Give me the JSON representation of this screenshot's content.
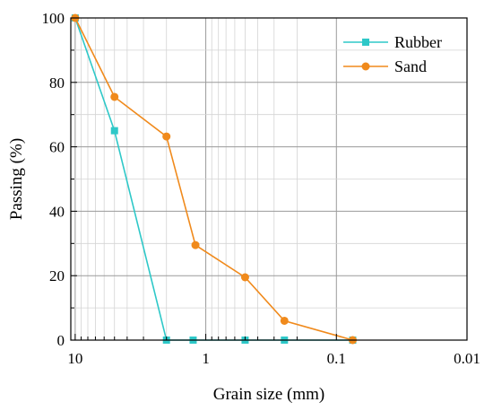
{
  "chart_data": {
    "type": "line",
    "xscale": "log",
    "xaxis_reversed": true,
    "xlim": [
      10.8,
      0.01
    ],
    "ylim": [
      0,
      100
    ],
    "xlabel": "Grain size (mm)",
    "ylabel": "Passing (%)",
    "grid": true,
    "legend_position": "top-right",
    "xticks": [
      {
        "value": 10,
        "label": "10"
      },
      {
        "value": 1,
        "label": "1"
      },
      {
        "value": 0.1,
        "label": "0.1"
      },
      {
        "value": 0.01,
        "label": "0.01"
      }
    ],
    "yticks": [
      {
        "value": 0,
        "label": "0"
      },
      {
        "value": 20,
        "label": "20"
      },
      {
        "value": 40,
        "label": "40"
      },
      {
        "value": 60,
        "label": "60"
      },
      {
        "value": 80,
        "label": "80"
      },
      {
        "value": 100,
        "label": "100"
      }
    ],
    "series": [
      {
        "name": "Rubber",
        "color": "#2ec8c8",
        "marker": "square",
        "points": [
          {
            "x": 10,
            "y": 100
          },
          {
            "x": 5,
            "y": 65
          },
          {
            "x": 2,
            "y": 0
          },
          {
            "x": 1.25,
            "y": 0
          },
          {
            "x": 0.5,
            "y": 0
          },
          {
            "x": 0.25,
            "y": 0
          },
          {
            "x": 0.075,
            "y": 0
          }
        ]
      },
      {
        "name": "Sand",
        "color": "#f08a1c",
        "marker": "circle",
        "points": [
          {
            "x": 10,
            "y": 100
          },
          {
            "x": 5,
            "y": 75.5
          },
          {
            "x": 2,
            "y": 63.2
          },
          {
            "x": 1.2,
            "y": 29.5
          },
          {
            "x": 0.5,
            "y": 19.5
          },
          {
            "x": 0.25,
            "y": 6
          },
          {
            "x": 0.075,
            "y": 0
          }
        ]
      }
    ]
  }
}
